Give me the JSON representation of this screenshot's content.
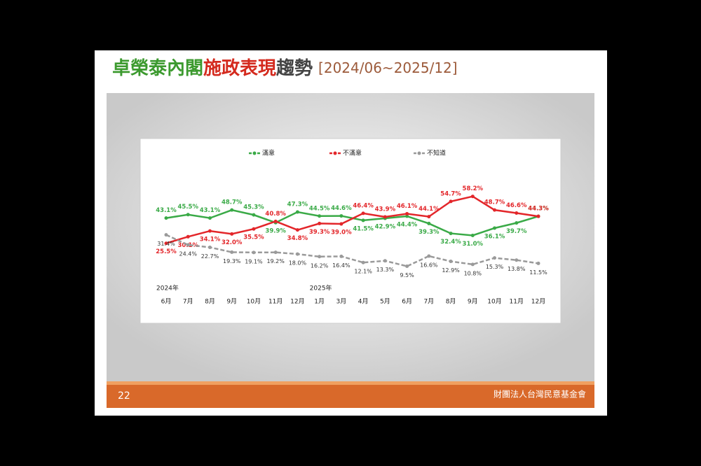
{
  "header": {
    "title_parts": [
      "卓榮泰內閣",
      "施政表現",
      "趨勢",
      "[2024/06~2025/12]"
    ]
  },
  "chart_data": {
    "type": "line",
    "category_groups": [
      {
        "label": "2024年",
        "categories": [
          "6月",
          "7月",
          "8月",
          "9月",
          "10月",
          "11月",
          "12月"
        ]
      },
      {
        "label": "2025年",
        "categories": [
          "1月",
          "3月",
          "4月",
          "5月",
          "6月",
          "7月",
          "8月",
          "9月",
          "10月",
          "11月",
          "12月"
        ]
      }
    ],
    "ylim": [
      0,
      80
    ],
    "series": [
      {
        "name": "滿意",
        "color": "#3aaa47",
        "values": [
          43.1,
          45.5,
          43.1,
          48.7,
          45.3,
          39.9,
          47.3,
          44.5,
          44.6,
          41.5,
          42.9,
          44.4,
          39.3,
          32.4,
          31.0,
          36.1,
          39.7,
          44.3
        ],
        "value_labels": [
          "43.1%",
          "45.5%",
          "43.1%",
          "48.7%",
          "45.3%",
          "39.9%",
          "47.3%",
          "44.5%",
          "44.6%",
          "41.5%",
          "42.9%",
          "44.4%",
          "39.3%",
          "32.4%",
          "31.0%",
          "36.1%",
          "39.7%",
          "44.3%"
        ]
      },
      {
        "name": "不滿意",
        "color": "#e3262a",
        "values": [
          25.5,
          30.1,
          34.1,
          32.0,
          35.5,
          40.8,
          34.8,
          39.3,
          39.0,
          46.4,
          43.9,
          46.1,
          44.1,
          54.7,
          58.2,
          48.7,
          46.6,
          44.3
        ],
        "value_labels": [
          "25.5%",
          "30.1%",
          "34.1%",
          "32.0%",
          "35.5%",
          "40.8%",
          "34.8%",
          "39.3%",
          "39.0%",
          "46.4%",
          "43.9%",
          "46.1%",
          "44.1%",
          "54.7%",
          "58.2%",
          "48.7%",
          "46.6%",
          "44.3%"
        ]
      },
      {
        "name": "不知道",
        "color": "#9a9a9a",
        "values": [
          31.4,
          24.4,
          22.7,
          19.3,
          19.1,
          19.2,
          18.0,
          16.2,
          16.4,
          12.1,
          13.3,
          9.5,
          16.6,
          12.9,
          10.8,
          15.3,
          13.8,
          11.5
        ],
        "value_labels": [
          "31.4%",
          "24.4%",
          "22.7%",
          "19.3%",
          "19.1%",
          "19.2%",
          "18.0%",
          "16.2%",
          "16.4%",
          "12.1%",
          "13.3%",
          "9.5%",
          "16.6%",
          "12.9%",
          "10.8%",
          "15.3%",
          "13.8%",
          "11.5%"
        ]
      }
    ]
  },
  "footer": {
    "page": "22",
    "org": "財團法人台灣民意基金會"
  }
}
